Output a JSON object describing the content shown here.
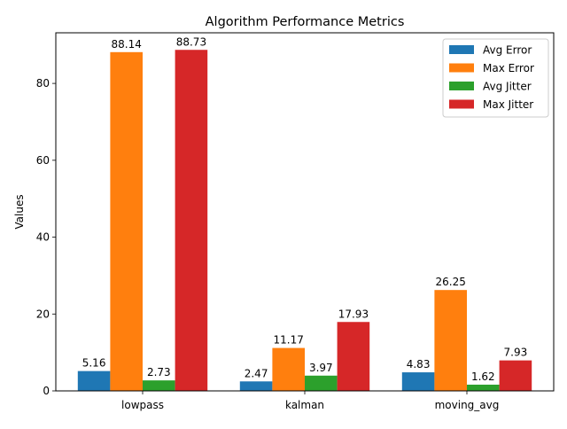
{
  "chart_data": {
    "type": "bar",
    "title": "Algorithm Performance Metrics",
    "xlabel": "",
    "ylabel": "Values",
    "categories": [
      "lowpass",
      "kalman",
      "moving_avg"
    ],
    "series": [
      {
        "name": "Avg Error",
        "color": "#1f77b4",
        "values": [
          5.16,
          2.47,
          4.83
        ],
        "labels": [
          "5.16",
          "2.47",
          "4.83"
        ]
      },
      {
        "name": "Max Error",
        "color": "#ff7f0e",
        "values": [
          88.14,
          11.17,
          26.25
        ],
        "labels": [
          "88.14",
          "11.17",
          "26.25"
        ]
      },
      {
        "name": "Avg Jitter",
        "color": "#2ca02c",
        "values": [
          2.73,
          3.97,
          1.62
        ],
        "labels": [
          "2.73",
          "3.97",
          "1.62"
        ]
      },
      {
        "name": "Max Jitter",
        "color": "#d62728",
        "values": [
          88.73,
          17.93,
          7.93
        ],
        "labels": [
          "88.73",
          "17.93",
          "7.93"
        ]
      }
    ],
    "ylim": [
      0,
      93.17
    ],
    "yticks": [
      0,
      20,
      40,
      60,
      80
    ],
    "ytick_labels": [
      "0",
      "20",
      "40",
      "60",
      "80"
    ],
    "grid": false,
    "legend_position": "top-right"
  }
}
